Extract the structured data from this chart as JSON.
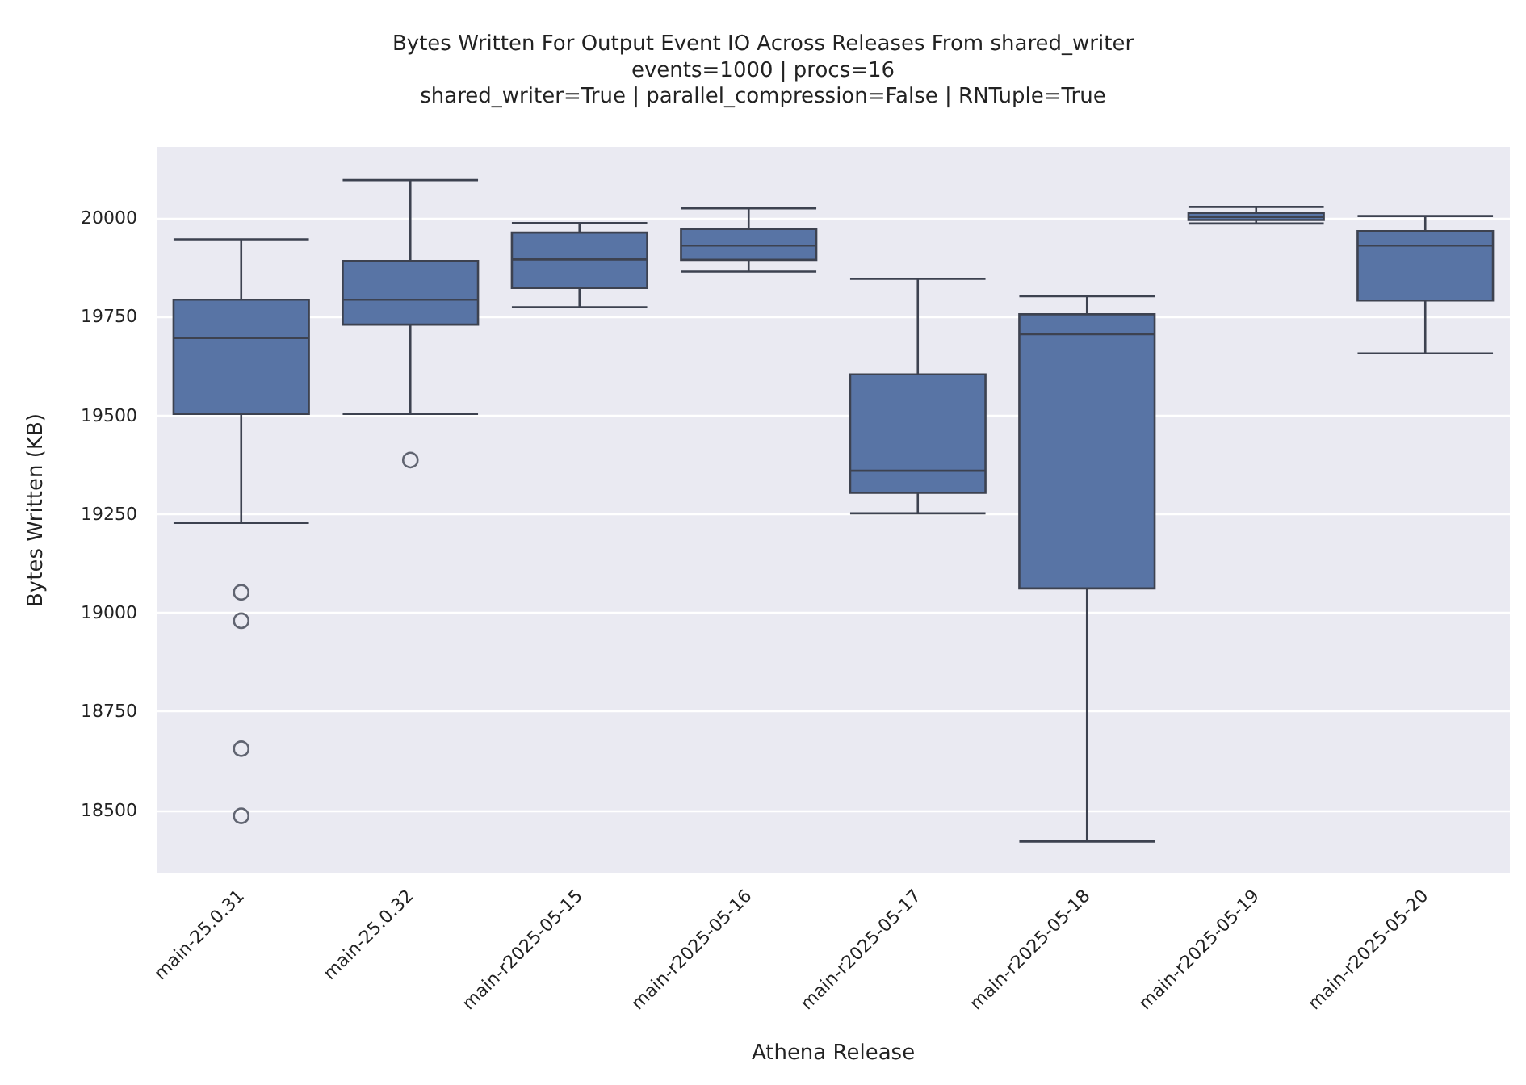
{
  "chart_data": {
    "type": "box",
    "title": "Bytes Written For Output Event IO Across Releases From shared_writer",
    "subtitle": "events=1000 | procs=16\nshared_writer=True | parallel_compression=False | RNTuple=True",
    "xlabel": "Athena Release",
    "ylabel": "Bytes Written (KB)",
    "categories": [
      "main-25.0.31",
      "main-25.0.32",
      "main-r2025-05-15",
      "main-r2025-05-16",
      "main-r2025-05-17",
      "main-r2025-05-18",
      "main-r2025-05-19",
      "main-r2025-05-20"
    ],
    "color": "#5874a5",
    "marker": "circle",
    "grid": "y",
    "ylim": [
      18340,
      20180
    ],
    "yticks": [
      18500,
      18750,
      19000,
      19250,
      19500,
      19750,
      20000
    ],
    "boxes": [
      {
        "low": 19228,
        "q1": 19504,
        "median": 19696,
        "q3": 19793,
        "high": 19946,
        "outliers": [
          19052,
          18980,
          18656,
          18486
        ]
      },
      {
        "low": 19504,
        "q1": 19730,
        "median": 19793,
        "q3": 19891,
        "high": 20096,
        "outliers": [
          19387
        ]
      },
      {
        "low": 19774,
        "q1": 19823,
        "median": 19895,
        "q3": 19963,
        "high": 19987
      },
      {
        "low": 19864,
        "q1": 19894,
        "median": 19930,
        "q3": 19972,
        "high": 20024
      },
      {
        "low": 19252,
        "q1": 19304,
        "median": 19360,
        "q3": 19604,
        "high": 19846
      },
      {
        "low": 18421,
        "q1": 19062,
        "median": 19706,
        "q3": 19756,
        "high": 19802
      },
      {
        "low": 19986,
        "q1": 19995,
        "median": 20003,
        "q3": 20013,
        "high": 20028
      },
      {
        "low": 19657,
        "q1": 19791,
        "median": 19930,
        "q3": 19967,
        "high": 20005
      }
    ]
  }
}
